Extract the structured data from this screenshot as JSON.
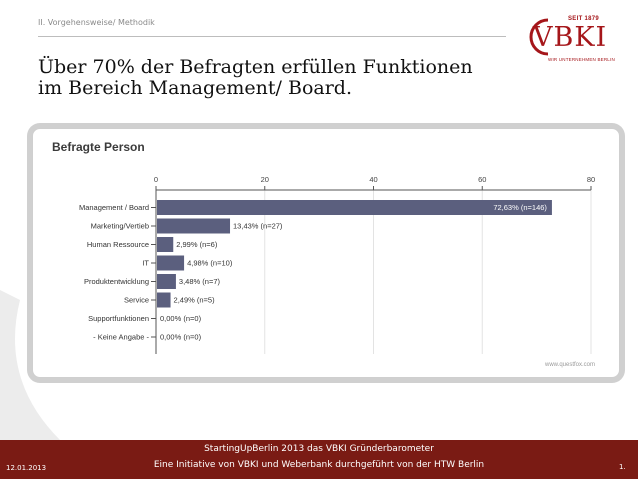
{
  "header": {
    "section": "II. Vorgehensweise/ Methodik",
    "title_line1": "Über 70% der Befragten erfüllen Funktionen",
    "title_line2": "im Bereich Management/ Board."
  },
  "logo": {
    "text": "VBKI",
    "since": "SEIT 1879",
    "tagline": "WIR UNTERNEHMEN BERLIN"
  },
  "chart_data": {
    "type": "bar",
    "orientation": "horizontal",
    "title": "Befragte Person",
    "categories": [
      "Management / Board",
      "Marketing/Vertieb",
      "Human Ressource",
      "IT",
      "Produktentwicklung",
      "Service",
      "Supportfunktionen",
      "- Keine Angabe -"
    ],
    "values": [
      72.63,
      13.43,
      2.99,
      4.98,
      3.48,
      2.49,
      0.0,
      0.0
    ],
    "data_labels": [
      "72,63% (n=146)",
      "13,43% (n=27)",
      "2,99% (n=6)",
      "4,98% (n=10)",
      "3,48% (n=7)",
      "2,49% (n=5)",
      "0,00% (n=0)",
      "0,00% (n=0)"
    ],
    "xlim": [
      0,
      80
    ],
    "xticks": [
      0,
      20,
      40,
      60,
      80
    ],
    "xtick_labels": [
      "0",
      "20",
      "40",
      "60",
      "80"
    ],
    "grid": true,
    "bar_color": "#5b5f7e",
    "watermark": "www.questfox.com"
  },
  "footer": {
    "line1": "StartingUpBerlin 2013    das VBKI Gründerbarometer",
    "line2": "Eine Initiative von VBKI und Weberbank durchgeführt von der HTW Berlin",
    "date": "12.01.2013",
    "page": "1."
  },
  "colors": {
    "brand": "#a5161a",
    "footer_bg": "#7a1b14"
  }
}
